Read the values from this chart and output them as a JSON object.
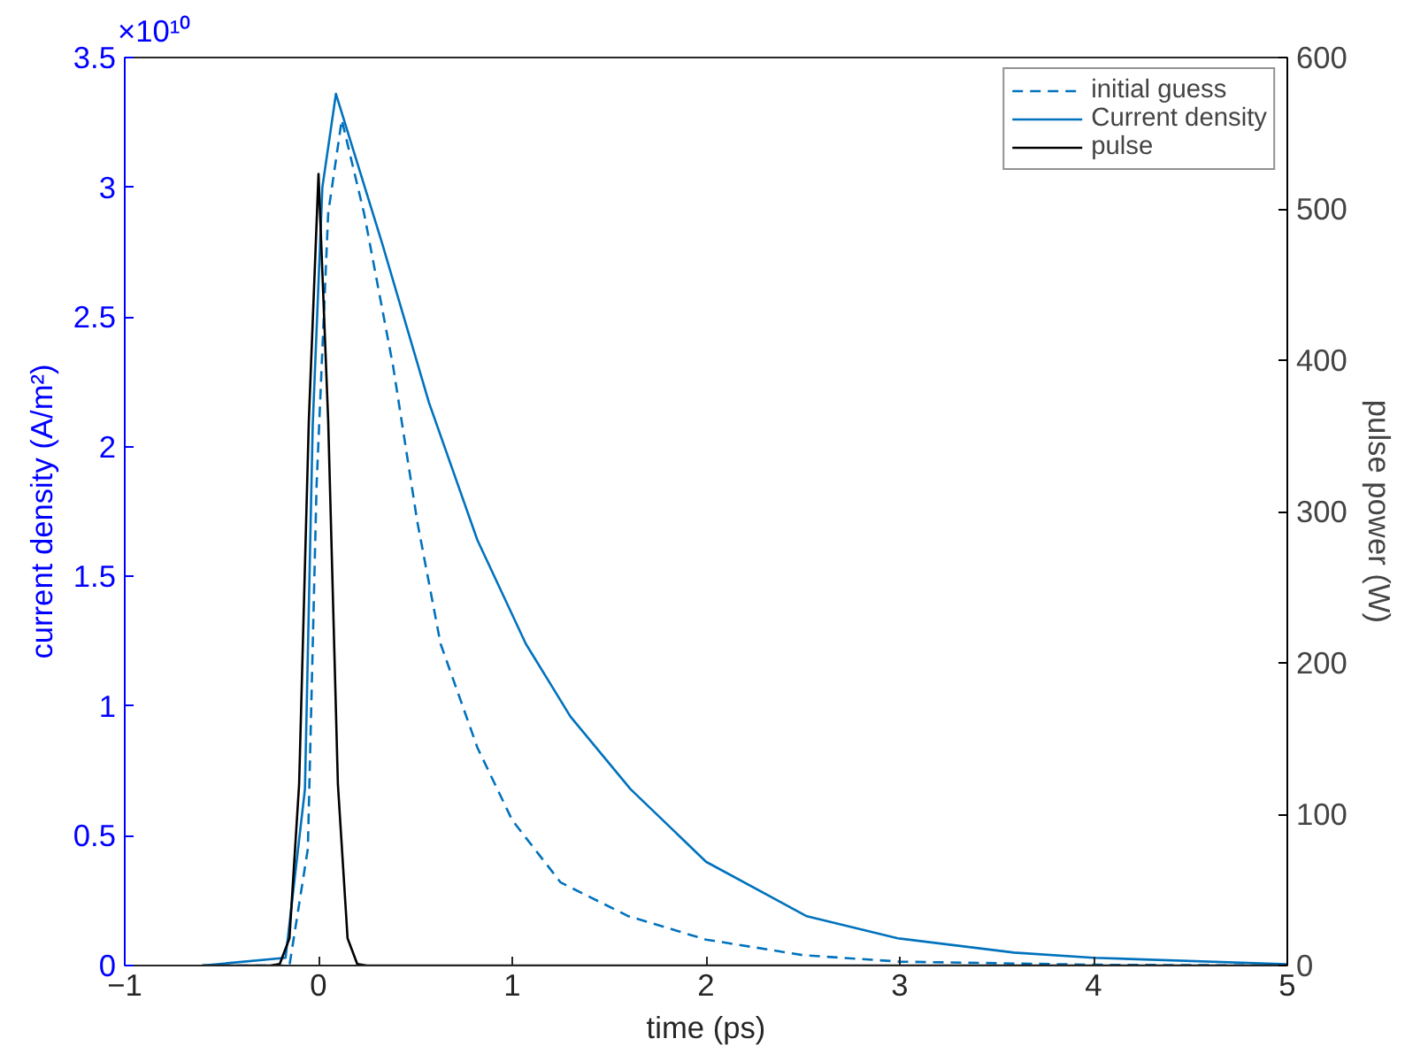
{
  "chart_data": {
    "type": "line",
    "xlabel": "time (ps)",
    "ylabel": "current density (A/m²)",
    "y2label": "pulse power (W)",
    "annotations": [
      "×10¹⁰"
    ],
    "xlim": [
      -1,
      5
    ],
    "xticks": [
      -1,
      0,
      1,
      2,
      3,
      4,
      5
    ],
    "ylim": [
      0,
      3.5
    ],
    "yticks": [
      0,
      0.5,
      1,
      1.5,
      2,
      2.5,
      3,
      3.5
    ],
    "y2lim": [
      0,
      600
    ],
    "y2ticks": [
      0,
      100,
      200,
      300,
      400,
      500,
      600
    ],
    "grid": false,
    "legend": "top right",
    "series": [
      {
        "name": "initial guess",
        "color": "#0072bd",
        "line_style": "dashed",
        "x": [
          -0.6,
          -0.15,
          -0.055,
          -0.01,
          0.05,
          0.12,
          0.235,
          0.385,
          0.51,
          0.63,
          0.82,
          1.0,
          1.25,
          1.6,
          2.0,
          2.5,
          3.0,
          4.0,
          5.0
        ],
        "values": [
          0,
          0,
          0.45,
          1.85,
          2.9,
          3.26,
          2.9,
          2.31,
          1.71,
          1.24,
          0.84,
          0.56,
          0.32,
          0.19,
          0.1,
          0.04,
          0.015,
          0.003,
          0
        ]
      },
      {
        "name": "Current density",
        "color": "#0072bd",
        "line_style": "solid",
        "x": [
          -0.6,
          -0.17,
          -0.07,
          -0.03,
          0.02,
          0.09,
          0.33,
          0.57,
          0.82,
          1.07,
          1.3,
          1.61,
          2.0,
          2.52,
          2.99,
          3.59,
          4.0,
          5.0
        ],
        "values": [
          0,
          0.03,
          0.68,
          2.08,
          3.0,
          3.36,
          2.78,
          2.17,
          1.64,
          1.24,
          0.96,
          0.68,
          0.4,
          0.19,
          0.105,
          0.05,
          0.03,
          0.005
        ]
      },
      {
        "name": "pulse",
        "color": "#000000",
        "line_style": "solid",
        "axis": "y2",
        "x": [
          -0.6,
          -0.25,
          -0.2,
          -0.15,
          -0.1,
          -0.05,
          0,
          0.05,
          0.1,
          0.15,
          0.2,
          0.25,
          5.0
        ],
        "values": [
          0,
          0,
          1,
          18,
          120,
          360,
          523,
          360,
          120,
          18,
          1,
          0,
          0
        ]
      }
    ]
  }
}
